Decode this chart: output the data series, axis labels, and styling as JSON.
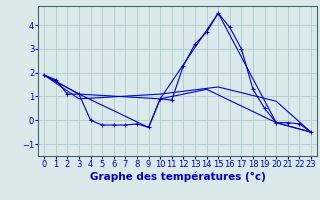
{
  "bg_color": "#daeaea",
  "grid_color": "#b0cccc",
  "line_color": "#0000cc",
  "xlabel": "Graphe des températures (°c)",
  "xlabel_fontsize": 7.5,
  "tick_fontsize": 6,
  "yticks": [
    -1,
    0,
    1,
    2,
    3,
    4
  ],
  "xlim": [
    -0.5,
    23.5
  ],
  "ylim": [
    -1.5,
    4.8
  ],
  "series": [
    {
      "x": [
        0,
        1,
        2,
        3,
        4,
        5,
        6,
        7,
        8,
        9,
        10,
        11,
        12,
        13,
        14,
        15,
        16,
        17,
        18,
        19,
        20,
        21,
        22,
        23
      ],
      "y": [
        1.9,
        1.7,
        1.1,
        1.1,
        0.0,
        -0.2,
        -0.2,
        -0.2,
        -0.15,
        -0.3,
        0.9,
        0.85,
        2.3,
        3.2,
        3.7,
        4.5,
        3.9,
        3.0,
        1.3,
        0.5,
        -0.1,
        -0.1,
        -0.15,
        -0.5
      ],
      "marker": true
    },
    {
      "x": [
        0,
        3,
        10,
        15,
        20,
        23
      ],
      "y": [
        1.9,
        1.1,
        0.9,
        4.5,
        -0.1,
        -0.5
      ],
      "marker": false
    },
    {
      "x": [
        0,
        3,
        10,
        15,
        20,
        23
      ],
      "y": [
        1.9,
        0.9,
        1.1,
        1.4,
        0.8,
        -0.5
      ],
      "marker": false
    },
    {
      "x": [
        0,
        3,
        9,
        10,
        14,
        20,
        23
      ],
      "y": [
        1.9,
        1.1,
        -0.3,
        0.9,
        1.3,
        -0.1,
        -0.5
      ],
      "marker": false
    }
  ]
}
